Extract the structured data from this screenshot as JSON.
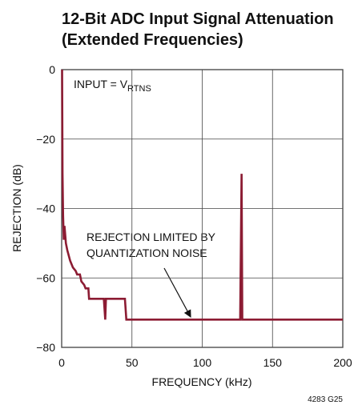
{
  "chart_data": {
    "type": "line",
    "title_lines": [
      "12-Bit ADC Input Signal Attenuation",
      "(Extended Frequencies)"
    ],
    "xlabel": "FREQUENCY (kHz)",
    "ylabel": "REJECTION (dB)",
    "annotations": [
      {
        "text": "INPUT = V",
        "sub": "RTNS"
      },
      {
        "lines": [
          "REJECTION LIMITED BY",
          "QUANTIZATION NOISE"
        ]
      }
    ],
    "footnote": "4283 G25",
    "xlim": [
      0,
      200
    ],
    "ylim": [
      -80,
      0
    ],
    "xticks": [
      0,
      50,
      100,
      150,
      200
    ],
    "yticks": [
      {
        "value": 0,
        "label": "0"
      },
      {
        "value": -20,
        "label": "−20"
      },
      {
        "value": -40,
        "label": "−40"
      },
      {
        "value": -60,
        "label": "−60"
      },
      {
        "value": -80,
        "label": "−80"
      }
    ],
    "grid": true,
    "series": [
      {
        "color": "#8c1c33",
        "x": [
          0.3,
          0.6,
          1,
          1.5,
          2,
          3,
          4,
          6,
          8,
          10,
          11,
          13,
          14,
          16,
          17,
          19,
          19.5,
          30,
          31,
          31.5,
          45,
          46,
          127,
          128,
          128.5,
          200
        ],
        "values": [
          0,
          -30,
          -42,
          -49,
          -45,
          -50,
          -52,
          -55,
          -57,
          -58,
          -59,
          -59,
          -61,
          -62,
          -63,
          -63,
          -66,
          -66,
          -72,
          -66,
          -66,
          -72,
          -72,
          -30,
          -72,
          -72
        ]
      }
    ]
  }
}
